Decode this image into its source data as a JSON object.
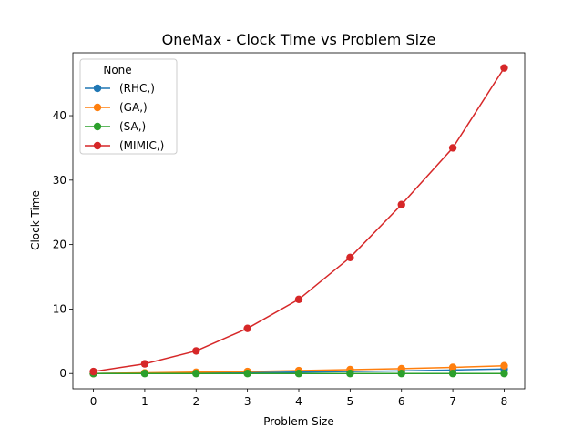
{
  "chart_data": {
    "type": "line",
    "title": "OneMax - Clock Time vs Problem Size",
    "xlabel": "Problem Size",
    "ylabel": "Clock Time",
    "x": [
      0,
      1,
      2,
      3,
      4,
      5,
      6,
      7,
      8
    ],
    "xlim": [
      -0.4,
      8.4
    ],
    "ylim": [
      -2.37,
      49.75
    ],
    "xticks": [
      0,
      1,
      2,
      3,
      4,
      5,
      6,
      7,
      8
    ],
    "yticks": [
      0,
      10,
      20,
      30,
      40
    ],
    "grid": false,
    "legend": {
      "title": "None",
      "placement": "upper left"
    },
    "series": [
      {
        "name": "(RHC,)",
        "color": "#1f77b4",
        "values": [
          0.0,
          0.05,
          0.1,
          0.15,
          0.2,
          0.3,
          0.4,
          0.55,
          0.7
        ]
      },
      {
        "name": "(GA,)",
        "color": "#ff7f0e",
        "values": [
          0.0,
          0.1,
          0.2,
          0.3,
          0.45,
          0.6,
          0.75,
          0.95,
          1.2
        ]
      },
      {
        "name": "(SA,)",
        "color": "#2ca02c",
        "values": [
          0.0,
          0.0,
          0.0,
          0.0,
          0.0,
          0.0,
          0.0,
          0.0,
          0.0
        ]
      },
      {
        "name": "(MIMIC,)",
        "color": "#d62728",
        "values": [
          0.3,
          1.5,
          3.5,
          7.0,
          11.5,
          18.0,
          26.2,
          35.0,
          47.4
        ]
      }
    ]
  }
}
